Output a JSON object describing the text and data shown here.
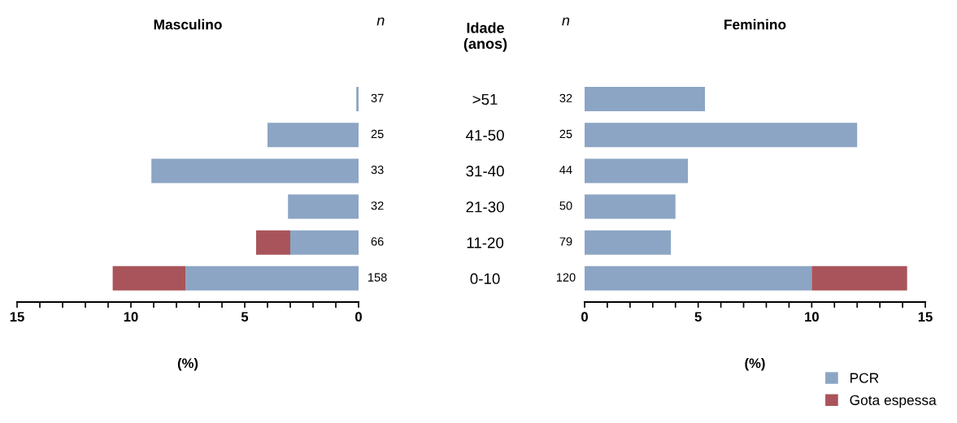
{
  "chart_data": [
    {
      "type": "bar",
      "title": "Masculino",
      "xlabel": "(%)",
      "ylabel": "Idade\n(anos)",
      "orientation": "horizontal",
      "stacked": true,
      "categories": [
        ">51",
        "41-50",
        "31-40",
        "21-30",
        "11-20",
        "0-10"
      ],
      "series": [
        {
          "color": "#8ca5c4",
          "values": [
            0.1,
            4.0,
            9.1,
            3.1,
            3.0,
            7.6
          ]
        },
        {
          "color": "#a9545a",
          "values": [
            null,
            null,
            null,
            null,
            1.5,
            3.2
          ]
        }
      ],
      "xlim": [
        15,
        0
      ],
      "xticks": [
        15,
        {
          "value": 14,
          "label": null
        },
        {
          "value": 13,
          "label": null
        },
        {
          "value": 12,
          "label": null
        },
        {
          "value": 11,
          "label": null
        },
        10,
        {
          "value": 9,
          "label": null
        },
        {
          "value": 8,
          "label": null
        },
        {
          "value": 7,
          "label": null
        },
        {
          "value": 6,
          "label": null
        },
        5,
        {
          "value": 4,
          "label": null
        },
        {
          "value": 3,
          "label": null
        },
        {
          "value": 2,
          "label": null
        },
        {
          "value": 1,
          "label": null
        },
        0
      ],
      "annotations": [
        "n",
        "37",
        "25",
        "33",
        "32",
        "66",
        "158"
      ],
      "grid": false
    },
    {
      "type": "bar",
      "title": "Feminino",
      "xlabel": "(%)",
      "orientation": "horizontal",
      "stacked": true,
      "categories": [
        null,
        null,
        null,
        null,
        null,
        null
      ],
      "series": [
        {
          "name": "PCR",
          "color": "#8ca5c4",
          "values": [
            5.3,
            12.0,
            4.55,
            4.0,
            3.8,
            10.0
          ]
        },
        {
          "name": "Gota espessa",
          "color": "#a9545a",
          "values": [
            null,
            null,
            null,
            null,
            null,
            4.2
          ]
        }
      ],
      "xlim": [
        0,
        15
      ],
      "xticks": [
        0,
        {
          "value": 1,
          "label": null
        },
        {
          "value": 2,
          "label": null
        },
        {
          "value": 3,
          "label": null
        },
        {
          "value": 4,
          "label": null
        },
        5,
        {
          "value": 6,
          "label": null
        },
        {
          "value": 7,
          "label": null
        },
        {
          "value": 8,
          "label": null
        },
        {
          "value": 9,
          "label": null
        },
        10,
        {
          "value": 11,
          "label": null
        },
        {
          "value": 12,
          "label": null
        },
        {
          "value": 13,
          "label": null
        },
        {
          "value": 14,
          "label": null
        },
        15
      ],
      "annotations": [
        "n",
        "32",
        "25",
        "44",
        "50",
        "79",
        "120"
      ],
      "grid": false,
      "legend": "bottom right"
    }
  ]
}
